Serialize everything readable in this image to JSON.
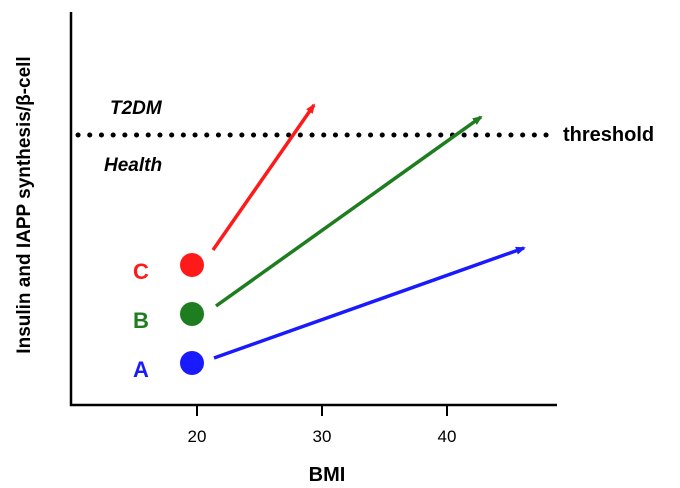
{
  "chart_data": {
    "type": "scatter",
    "xlabel": "BMI",
    "ylabel": "Insulin and IAPP synthesis/β-cell",
    "x_ticks": [
      20,
      30,
      40
    ],
    "threshold": {
      "label": "threshold",
      "above_label": "T2DM",
      "below_label": "Health"
    },
    "groups": [
      {
        "name": "A",
        "color": "#1a1aff",
        "start_bmi": 19.6,
        "arrow_end_bmi": 46.5
      },
      {
        "name": "B",
        "color": "#1e7d1e",
        "start_bmi": 19.6,
        "arrow_end_bmi": 43.0
      },
      {
        "name": "C",
        "color": "#ff1a1a",
        "start_bmi": 19.6,
        "arrow_end_bmi": 29.6
      }
    ]
  }
}
